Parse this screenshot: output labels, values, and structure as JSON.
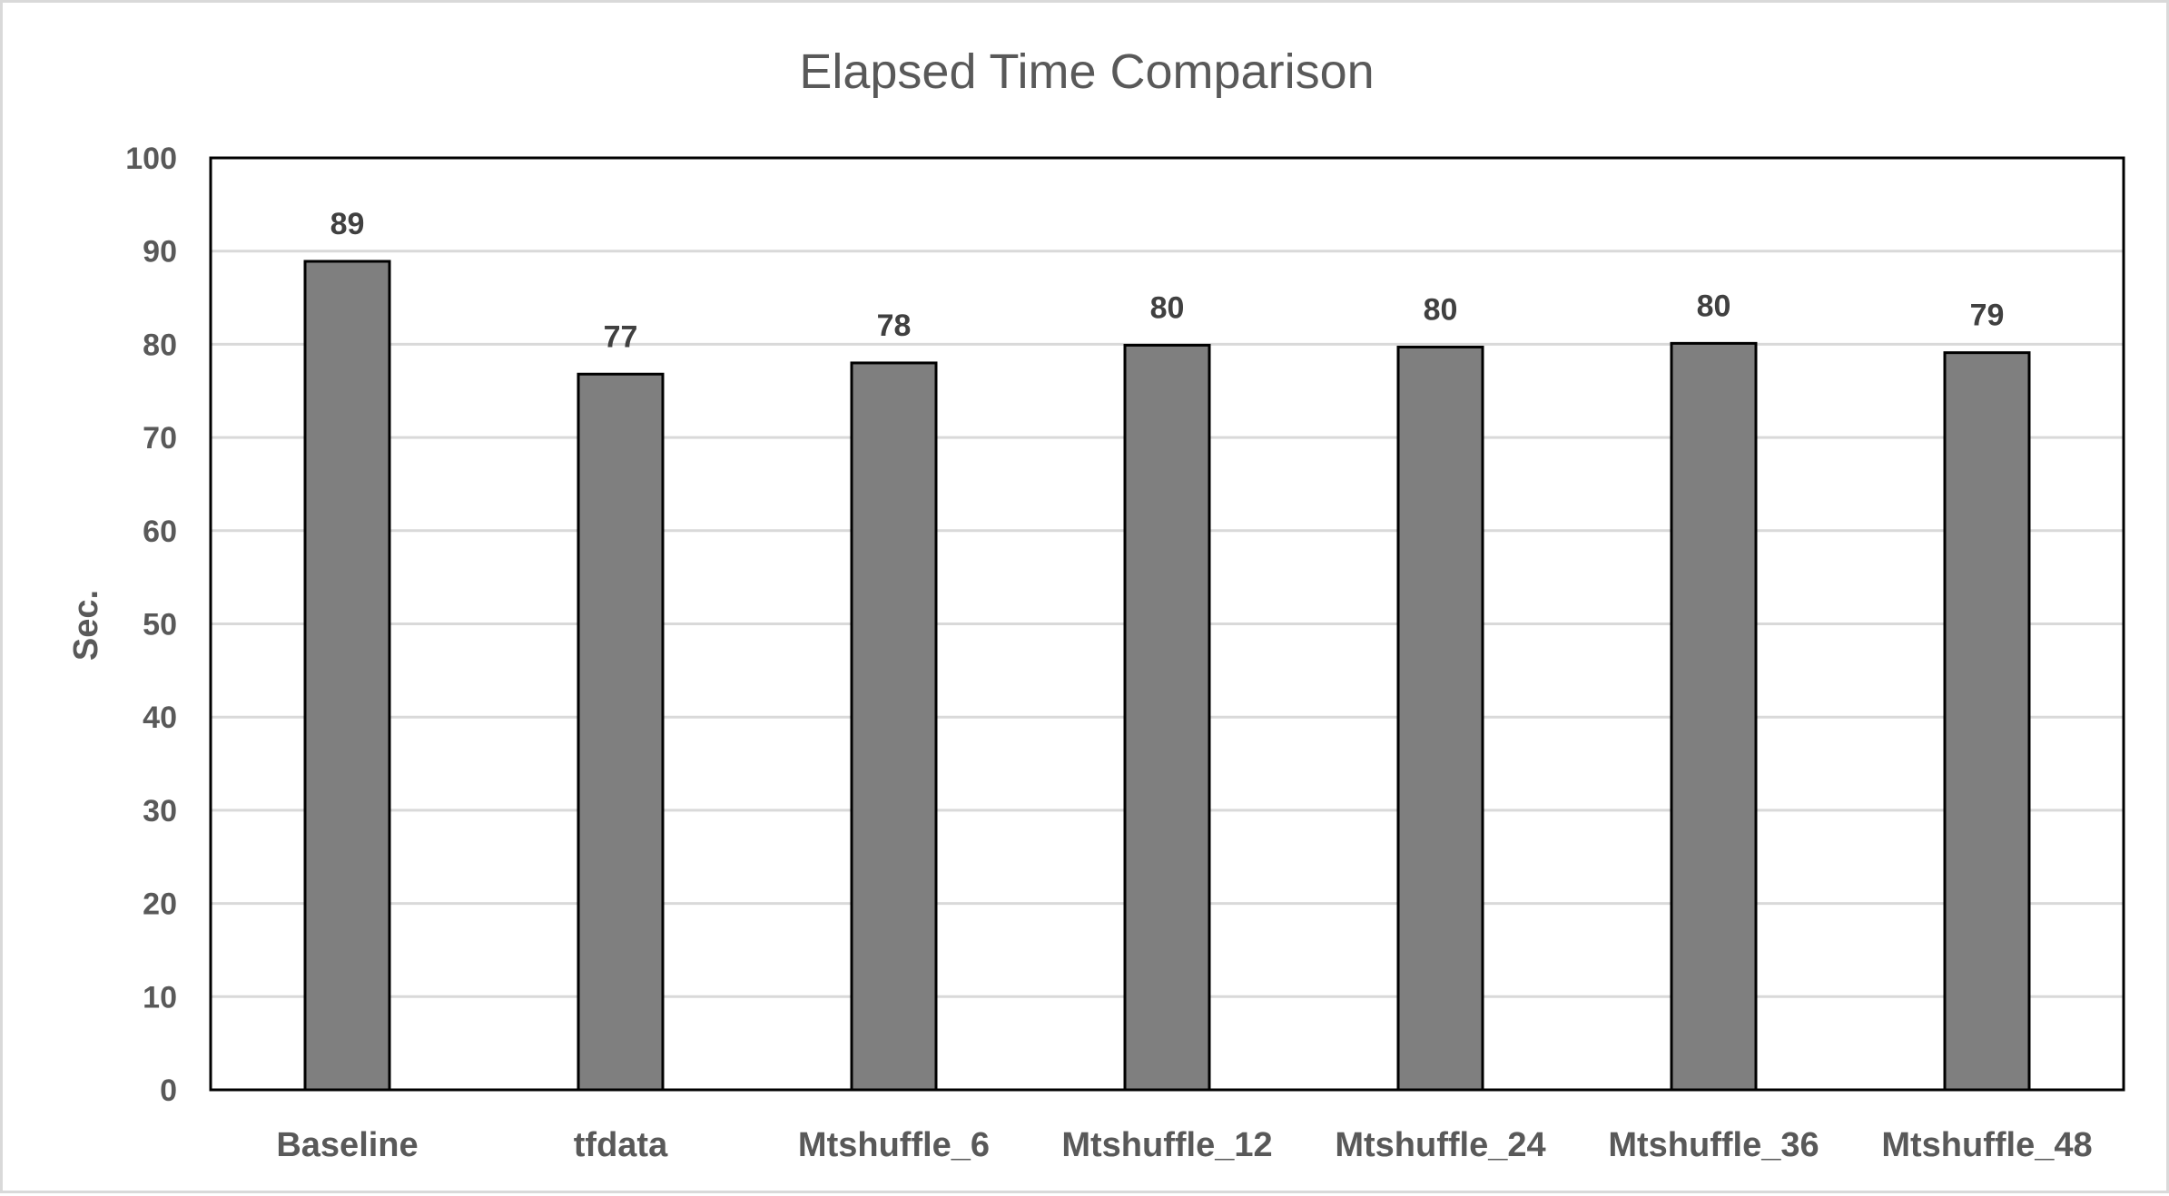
{
  "chart_data": {
    "type": "bar",
    "title": "Elapsed Time Comparison",
    "xlabel": "",
    "ylabel": "Sec.",
    "ylim": [
      0,
      100
    ],
    "y_ticks": [
      0,
      10,
      20,
      30,
      40,
      50,
      60,
      70,
      80,
      90,
      100
    ],
    "grid": true,
    "legend": "none",
    "categories": [
      "Baseline",
      "tfdata",
      "Mtshuffle_6",
      "Mtshuffle_12",
      "Mtshuffle_24",
      "Mtshuffle_36",
      "Mtshuffle_48"
    ],
    "values": [
      88.9,
      76.8,
      78.0,
      79.9,
      79.7,
      80.1,
      79.1
    ],
    "data_labels": [
      "89",
      "77",
      "78",
      "80",
      "80",
      "80",
      "79"
    ],
    "colors": {
      "bar_fill": "#7f7f7f",
      "bar_stroke": "#000000",
      "gridline": "#d9d9d9",
      "plot_border": "#000000",
      "text": "#595959"
    }
  }
}
